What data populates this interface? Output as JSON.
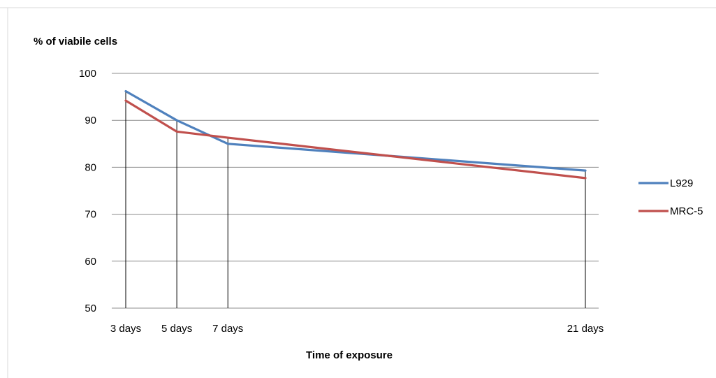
{
  "chart_data": {
    "type": "line",
    "title": "",
    "ylabel": "% of viabile cells",
    "xlabel": "Time of exposure",
    "x": [
      3,
      5,
      7,
      21
    ],
    "categories": [
      "3 days",
      "5 days",
      "7 days",
      "21 days"
    ],
    "ylim": [
      50,
      100
    ],
    "xlim": [
      3,
      21
    ],
    "yticks": [
      "50",
      "60",
      "70",
      "80",
      "90",
      "100"
    ],
    "grid": "horizontal",
    "drop_lines": true,
    "legend_position": "right",
    "series": [
      {
        "name": "L929",
        "color": "#4F81BD",
        "values": [
          96.2,
          90.0,
          85.0,
          79.3
        ]
      },
      {
        "name": "MRC-5",
        "color": "#C0504D",
        "values": [
          94.2,
          87.6,
          86.3,
          77.7
        ]
      }
    ]
  }
}
